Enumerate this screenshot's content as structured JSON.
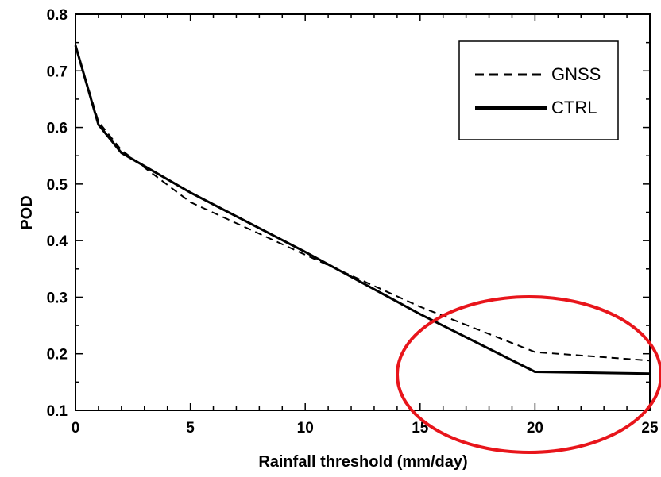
{
  "chart_data": {
    "type": "line",
    "xlabel": "Rainfall threshold (mm/day)",
    "ylabel": "POD",
    "xlim": [
      0,
      25
    ],
    "ylim": [
      0.1,
      0.8
    ],
    "xticks": [
      "0",
      "5",
      "10",
      "15",
      "20",
      "25"
    ],
    "yticks": [
      "0.1",
      "0.2",
      "0.3",
      "0.4",
      "0.5",
      "0.6",
      "0.7",
      "0.8"
    ],
    "grid": false,
    "legend_position": "top-right",
    "series": [
      {
        "name": "GNSS",
        "style": "dashed",
        "color": "#000000",
        "x": [
          0,
          1,
          2,
          5,
          10,
          15,
          20,
          25
        ],
        "y": [
          0.745,
          0.61,
          0.56,
          0.468,
          0.375,
          0.283,
          0.203,
          0.188
        ]
      },
      {
        "name": "CTRL",
        "style": "solid",
        "color": "#000000",
        "x": [
          0,
          1,
          2,
          5,
          10,
          15,
          20,
          25
        ],
        "y": [
          0.745,
          0.605,
          0.555,
          0.485,
          0.38,
          0.27,
          0.168,
          0.165
        ]
      }
    ],
    "annotations": [
      {
        "type": "ellipse",
        "color": "#e8151b",
        "note": "highlight region x 15-25"
      }
    ]
  }
}
